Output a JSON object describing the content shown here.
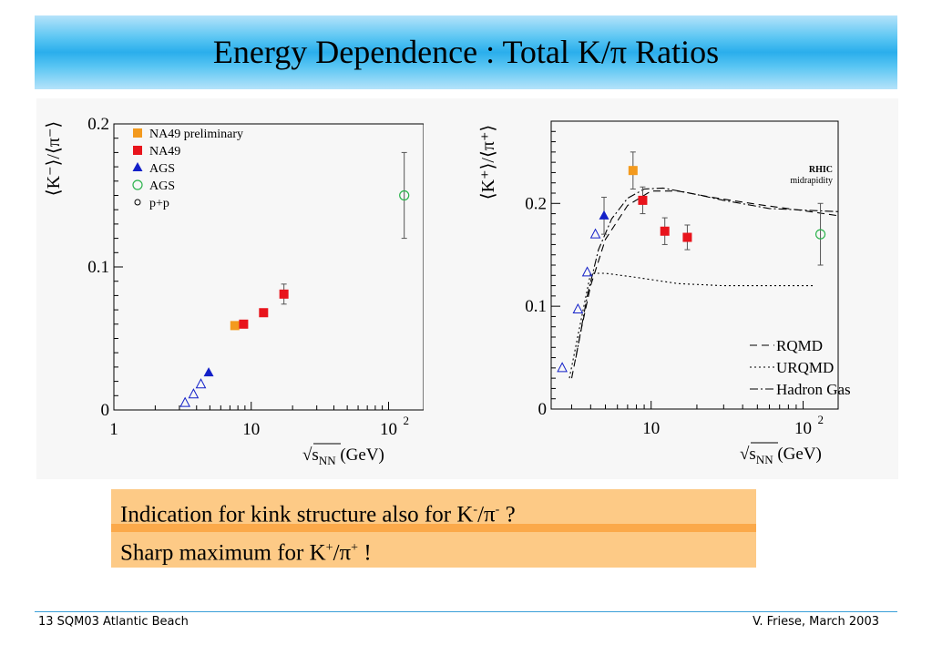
{
  "title": {
    "main": "Energy Dependence : Total K/π Ratios"
  },
  "colors": {
    "banner": "#2aaeec",
    "na49": "#e8141c",
    "na49_prelim": "#f39a1e",
    "ags": "#1320c8",
    "note_bg": "#fdca86",
    "note_sep": "#fba94a"
  },
  "chart_data": [
    {
      "type": "scatter",
      "ylabel": "⟨K⁻⟩/⟨π⁻⟩",
      "xlabel_prefix": "√s",
      "xlabel_sub": "NN",
      "xlabel_suffix": " (GeV)",
      "x_scale": "log",
      "xlim": [
        1,
        180
      ],
      "ylim": [
        0,
        0.2
      ],
      "x_ticks": [
        {
          "value": 1,
          "label": "1"
        },
        {
          "value": 10,
          "label": "10"
        },
        {
          "value": 100,
          "label": "10",
          "sup": "2"
        }
      ],
      "y_ticks": [
        {
          "value": 0,
          "label": "0"
        },
        {
          "value": 0.1,
          "label": "0.1"
        },
        {
          "value": 0.2,
          "label": "0.2"
        }
      ],
      "legend_position": "top-left",
      "legend": [
        {
          "key": "prelim",
          "label": "NA49 preliminary",
          "marker": "square",
          "color": "#f39a1e"
        },
        {
          "key": "na49",
          "label": "NA49",
          "marker": "square",
          "color": "#e8141c"
        },
        {
          "key": "ags",
          "label": "AGS",
          "marker": "triangle",
          "color": "#1320c8"
        },
        {
          "key": "agsopen",
          "label": "AGS",
          "marker": "circle-open",
          "color": "#2bb24c"
        },
        {
          "key": "pp",
          "label": "p+p",
          "marker": "circle-small",
          "color": "#000000"
        }
      ],
      "series": [
        {
          "key": "prelim",
          "marker": "square",
          "color": "#f39a1e",
          "points": [
            {
              "x": 7.6,
              "y": 0.059
            }
          ]
        },
        {
          "key": "na49",
          "marker": "square",
          "color": "#e8141c",
          "points": [
            {
              "x": 8.8,
              "y": 0.06
            },
            {
              "x": 12.3,
              "y": 0.068
            },
            {
              "x": 17.3,
              "y": 0.081,
              "err": 0.007
            }
          ]
        },
        {
          "key": "ags_tri_open",
          "marker": "triangle-open",
          "color": "#1320c8",
          "points": [
            {
              "x": 3.3,
              "y": 0.005
            },
            {
              "x": 3.8,
              "y": 0.011
            },
            {
              "x": 4.3,
              "y": 0.018
            }
          ]
        },
        {
          "key": "ags",
          "marker": "triangle",
          "color": "#1320c8",
          "points": [
            {
              "x": 4.9,
              "y": 0.026
            }
          ]
        },
        {
          "key": "agsopen",
          "marker": "circle-open",
          "color": "#2bb24c",
          "points": [
            {
              "x": 130,
              "y": 0.15,
              "err": 0.03
            }
          ]
        }
      ]
    },
    {
      "type": "line",
      "ylabel": "⟨K⁺⟩/⟨π⁺⟩",
      "xlabel_prefix": "√s",
      "xlabel_sub": "NN",
      "xlabel_suffix": " (GeV)",
      "x_scale": "log",
      "xlim": [
        2.2,
        170
      ],
      "ylim": [
        0,
        0.28
      ],
      "x_ticks": [
        {
          "value": 10,
          "label": "10"
        },
        {
          "value": 100,
          "label": "10",
          "sup": "2"
        }
      ],
      "y_ticks": [
        {
          "value": 0,
          "label": "0"
        },
        {
          "value": 0.1,
          "label": "0.1"
        },
        {
          "value": 0.2,
          "label": "0.2"
        }
      ],
      "annotation": {
        "line1": "RHIC",
        "line2": "midrapidity",
        "position": "top-right"
      },
      "legend_position": "bottom-right",
      "legend": [
        {
          "label": "RQMD",
          "dash": "8,5"
        },
        {
          "label": "URQMD",
          "dash": "2,3"
        },
        {
          "label": "Hadron Gas",
          "dash": "9,3,2,3"
        }
      ],
      "series": [
        {
          "key": "prelim",
          "marker": "square",
          "color": "#f39a1e",
          "points": [
            {
              "x": 7.6,
              "y": 0.232,
              "err": 0.018
            }
          ]
        },
        {
          "key": "na49",
          "marker": "square",
          "color": "#e8141c",
          "points": [
            {
              "x": 8.8,
              "y": 0.203,
              "err": 0.013
            },
            {
              "x": 12.3,
              "y": 0.173,
              "err": 0.013
            },
            {
              "x": 17.3,
              "y": 0.167,
              "err": 0.012
            }
          ]
        },
        {
          "key": "ags_tri_open",
          "marker": "triangle-open",
          "color": "#1320c8",
          "points": [
            {
              "x": 2.6,
              "y": 0.04
            },
            {
              "x": 3.3,
              "y": 0.097
            },
            {
              "x": 3.8,
              "y": 0.133
            },
            {
              "x": 4.3,
              "y": 0.17
            }
          ]
        },
        {
          "key": "ags",
          "marker": "triangle",
          "color": "#1320c8",
          "points": [
            {
              "x": 4.9,
              "y": 0.188,
              "err": 0.018
            }
          ]
        },
        {
          "key": "agsopen",
          "marker": "circle-open",
          "color": "#2bb24c",
          "points": [
            {
              "x": 130,
              "y": 0.17,
              "err": 0.03
            }
          ]
        }
      ],
      "curves": [
        {
          "label": "RQMD",
          "dash": "8,5",
          "points": [
            [
              3.0,
              0.03
            ],
            [
              3.5,
              0.08
            ],
            [
              4.0,
              0.12
            ],
            [
              5.0,
              0.165
            ],
            [
              7.0,
              0.198
            ],
            [
              10.0,
              0.212
            ],
            [
              15.0,
              0.212
            ],
            [
              25.0,
              0.206
            ],
            [
              50.0,
              0.199
            ],
            [
              100.0,
              0.193
            ],
            [
              170.0,
              0.188
            ]
          ]
        },
        {
          "label": "URQMD",
          "dash": "2,3",
          "points": [
            [
              2.9,
              0.03
            ],
            [
              3.5,
              0.09
            ],
            [
              4.0,
              0.132
            ],
            [
              5.0,
              0.132
            ],
            [
              8.0,
              0.128
            ],
            [
              15.0,
              0.122
            ],
            [
              30.0,
              0.12
            ],
            [
              120.0,
              0.12
            ]
          ]
        },
        {
          "label": "Hadron Gas",
          "dash": "9,3,2,3",
          "points": [
            [
              3.2,
              0.05
            ],
            [
              3.8,
              0.11
            ],
            [
              4.5,
              0.155
            ],
            [
              5.5,
              0.185
            ],
            [
              7.0,
              0.205
            ],
            [
              9.0,
              0.214
            ],
            [
              12.0,
              0.215
            ],
            [
              18.0,
              0.21
            ],
            [
              30.0,
              0.203
            ],
            [
              60.0,
              0.195
            ],
            [
              170.0,
              0.192
            ]
          ]
        }
      ]
    }
  ],
  "notes": {
    "line1_text": "Indication for kink structure also for K",
    "line1_sup1": "-",
    "line1_mid": "/π",
    "line1_sup2": "-",
    "line1_end": " ?",
    "line2_text": "Sharp maximum for K",
    "line2_sup1": "+",
    "line2_mid": "/π",
    "line2_sup2": "+",
    "line2_end": " !"
  },
  "footer": {
    "left": "13  SQM03 Atlantic Beach",
    "right": "V. Friese, March 2003"
  }
}
